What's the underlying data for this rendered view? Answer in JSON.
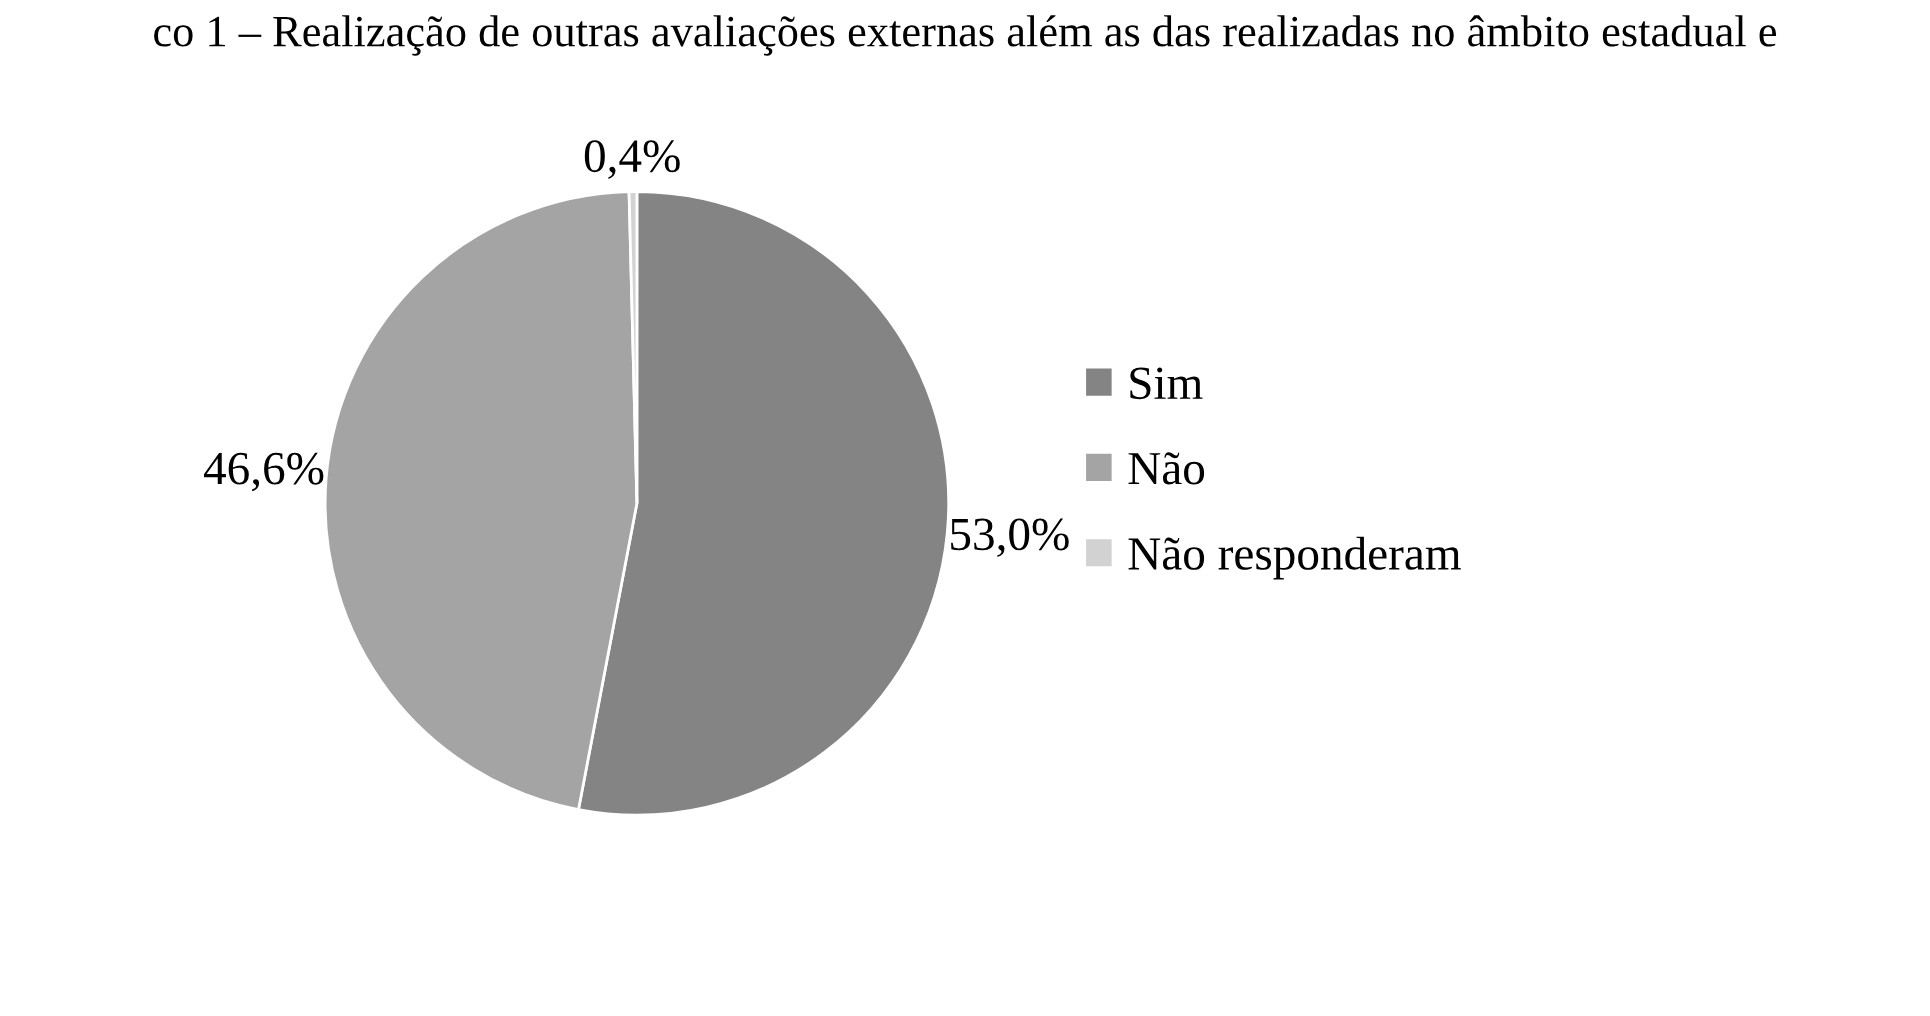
{
  "chart_data": {
    "type": "pie",
    "title": "co 1 – Realização de outras avaliações externas além as das realizadas no âmbito estadual e",
    "categories": [
      "Sim",
      "Não",
      "Não responderam"
    ],
    "values": [
      53.0,
      46.6,
      0.4
    ],
    "value_labels": [
      "53,0%",
      "46,6%",
      "0,4%"
    ],
    "colors": [
      "#848484",
      "#a4a4a4",
      "#d2d2d2"
    ],
    "legend": "right"
  }
}
